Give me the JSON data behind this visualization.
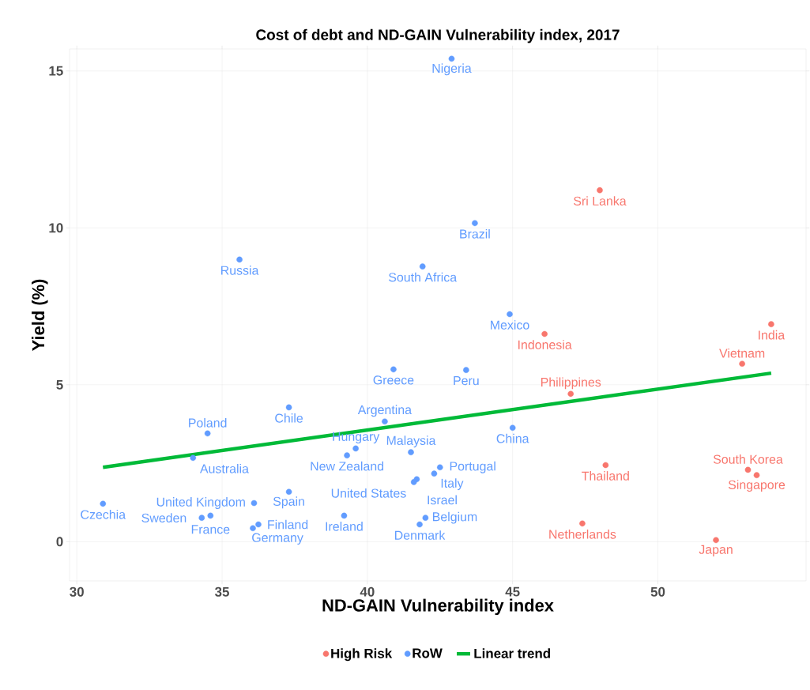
{
  "chart_data": {
    "type": "scatter",
    "title": "Cost of debt and ND-GAIN Vulnerability index, 2017",
    "xlabel": "ND-GAIN Vulnerability index",
    "ylabel": "Yield (%)",
    "xlim": [
      29.75,
      55.1
    ],
    "ylim": [
      -1.25,
      15.7
    ],
    "xticks": [
      30,
      35,
      40,
      45,
      50
    ],
    "yticks": [
      0,
      5,
      10,
      15
    ],
    "grid": true,
    "legend": "bottom",
    "marker": "circle",
    "series": [
      {
        "name": "High Risk",
        "color": "#f8766d",
        "x": [
          48.0,
          46.1,
          53.9,
          52.9,
          47.0,
          48.2,
          47.4,
          52.0,
          53.1,
          53.4
        ],
        "values": [
          11.2,
          6.62,
          6.93,
          5.67,
          4.71,
          2.44,
          0.58,
          0.05,
          2.29,
          2.12
        ]
      },
      {
        "name": "RoW",
        "color": "#619cff",
        "x": [
          42.9,
          43.7,
          35.6,
          41.9,
          44.9,
          40.9,
          43.4,
          37.3,
          40.6,
          45.0,
          41.5,
          39.3,
          39.6,
          42.5,
          42.3,
          41.7,
          41.6,
          34.5,
          34.0,
          30.9,
          37.3,
          36.1,
          34.6,
          34.3,
          36.25,
          36.06,
          39.2,
          42.0,
          41.8
        ],
        "values": [
          15.39,
          10.15,
          8.99,
          8.77,
          7.25,
          5.49,
          5.47,
          4.28,
          3.83,
          3.63,
          2.85,
          2.75,
          2.97,
          2.37,
          2.17,
          1.99,
          1.9,
          3.45,
          2.67,
          1.21,
          1.59,
          1.23,
          0.83,
          0.76,
          0.55,
          0.43,
          0.83,
          0.76,
          0.55
        ]
      },
      {
        "name": "Linear trend",
        "type": "line",
        "marker": "none",
        "color": "#00ba38",
        "x": [
          30.9,
          53.9
        ],
        "values": [
          2.37,
          5.37
        ]
      }
    ],
    "annotations": [
      {
        "text": "Sri Lanka",
        "x": 48.0,
        "y": 11.2
      },
      {
        "text": "Indonesia",
        "x": 46.1,
        "y": 6.62
      },
      {
        "text": "India",
        "x": 53.9,
        "y": 6.93
      },
      {
        "text": "Vietnam",
        "x": 52.9,
        "y": 5.67
      },
      {
        "text": "Philippines",
        "x": 47.0,
        "y": 4.71
      },
      {
        "text": "Thailand",
        "x": 48.2,
        "y": 2.44
      },
      {
        "text": "Netherlands",
        "x": 47.4,
        "y": 0.58
      },
      {
        "text": "Japan",
        "x": 52.0,
        "y": 0.05
      },
      {
        "text": "South Korea",
        "x": 53.1,
        "y": 2.29
      },
      {
        "text": "Singapore",
        "x": 53.4,
        "y": 2.12
      },
      {
        "text": "Nigeria",
        "x": 42.9,
        "y": 15.39
      },
      {
        "text": "Brazil",
        "x": 43.7,
        "y": 10.15
      },
      {
        "text": "Russia",
        "x": 35.6,
        "y": 8.99
      },
      {
        "text": "South Africa",
        "x": 41.9,
        "y": 8.77
      },
      {
        "text": "Mexico",
        "x": 44.9,
        "y": 7.25
      },
      {
        "text": "Greece",
        "x": 40.9,
        "y": 5.49
      },
      {
        "text": "Peru",
        "x": 43.4,
        "y": 5.47
      },
      {
        "text": "Chile",
        "x": 37.3,
        "y": 4.28
      },
      {
        "text": "Argentina",
        "x": 40.6,
        "y": 3.83
      },
      {
        "text": "China",
        "x": 45.0,
        "y": 3.63
      },
      {
        "text": "Malaysia",
        "x": 41.5,
        "y": 2.85
      },
      {
        "text": "New Zealand",
        "x": 39.3,
        "y": 2.75
      },
      {
        "text": "Hungary",
        "x": 39.6,
        "y": 2.97
      },
      {
        "text": "Portugal",
        "x": 42.5,
        "y": 2.37
      },
      {
        "text": "Italy",
        "x": 42.3,
        "y": 2.17
      },
      {
        "text": "United States",
        "x": 41.7,
        "y": 1.99
      },
      {
        "text": "Israel",
        "x": 41.6,
        "y": 1.9
      },
      {
        "text": "Poland",
        "x": 34.5,
        "y": 3.45
      },
      {
        "text": "Australia",
        "x": 34.0,
        "y": 2.67
      },
      {
        "text": "Czechia",
        "x": 30.9,
        "y": 1.21
      },
      {
        "text": "Spain",
        "x": 37.3,
        "y": 1.59
      },
      {
        "text": "United Kingdom",
        "x": 36.1,
        "y": 1.23
      },
      {
        "text": "France",
        "x": 34.6,
        "y": 0.83
      },
      {
        "text": "Sweden",
        "x": 34.3,
        "y": 0.76
      },
      {
        "text": "Finland",
        "x": 36.25,
        "y": 0.55
      },
      {
        "text": "Germany",
        "x": 36.06,
        "y": 0.43
      },
      {
        "text": "Ireland",
        "x": 39.2,
        "y": 0.83
      },
      {
        "text": "Belgium",
        "x": 42.0,
        "y": 0.76
      },
      {
        "text": "Denmark",
        "x": 41.8,
        "y": 0.55
      }
    ]
  }
}
